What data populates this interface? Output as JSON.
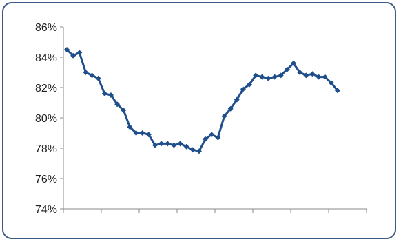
{
  "chart_data": {
    "type": "line",
    "title": "",
    "xlabel": "",
    "ylabel": "",
    "ylim": [
      74,
      86
    ],
    "y_tick_labels": [
      "86%",
      "84%",
      "82%",
      "80%",
      "78%",
      "76%",
      "74%"
    ],
    "y_ticks": [
      86,
      84,
      82,
      80,
      78,
      76,
      74
    ],
    "x_tick_count": 9,
    "grid": false,
    "legend": "none",
    "marker": "diamond",
    "colors": {
      "line": "#1f4e8c",
      "axis": "#888888",
      "frame": "#3b5a86"
    },
    "series": [
      {
        "values": [
          84.5,
          84.1,
          84.3,
          83.0,
          82.8,
          82.6,
          81.6,
          81.5,
          80.9,
          80.5,
          79.4,
          79.0,
          79.0,
          78.9,
          78.2,
          78.3,
          78.3,
          78.2,
          78.3,
          78.1,
          77.9,
          77.8,
          78.6,
          78.9,
          78.7,
          80.1,
          80.6,
          81.2,
          81.9,
          82.2,
          82.8,
          82.7,
          82.6,
          82.7,
          82.8,
          83.2,
          83.6,
          83.0,
          82.8,
          82.9,
          82.7,
          82.7,
          82.3,
          81.8
        ]
      }
    ]
  }
}
